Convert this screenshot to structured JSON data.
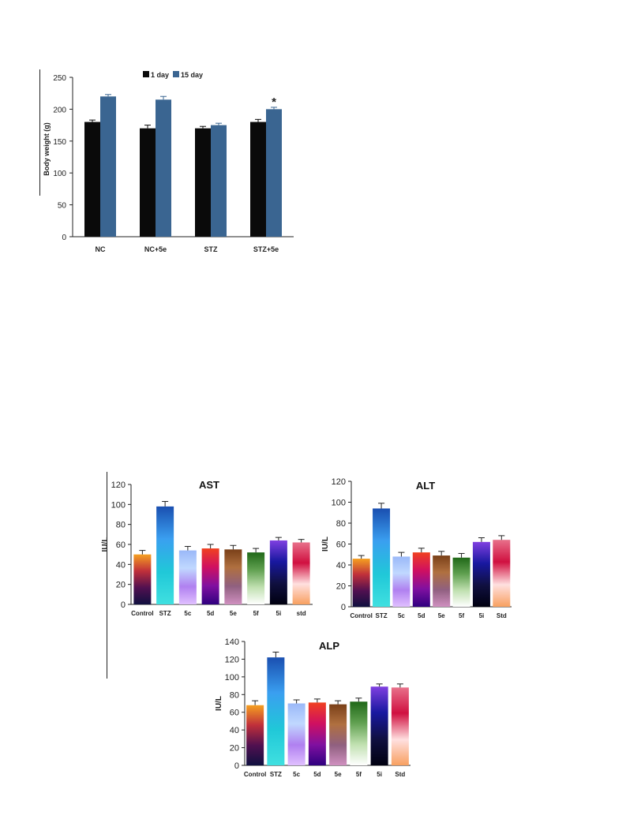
{
  "chart_data": [
    {
      "id": "bw",
      "type": "bar",
      "title": "",
      "ylabel": "Body weight (g)",
      "xlabel": "",
      "ylim": [
        0,
        250
      ],
      "yticks": [
        0,
        50,
        100,
        150,
        200,
        250
      ],
      "categories": [
        "NC",
        "NC+5e",
        "STZ",
        "STZ+5e"
      ],
      "series": [
        {
          "name": "1 day",
          "color": "#0a0a0a",
          "values": [
            180,
            170,
            170,
            180
          ],
          "errors": [
            3,
            5,
            3,
            4
          ]
        },
        {
          "name": "15 day",
          "color": "#3a6591",
          "values": [
            220,
            215,
            175,
            200
          ],
          "errors": [
            3,
            5,
            3,
            3
          ]
        }
      ],
      "annotations": [
        {
          "category": "STZ+5e",
          "series": 1,
          "text": "*"
        }
      ],
      "legend": "top"
    },
    {
      "id": "ast",
      "type": "bar",
      "title": "AST",
      "ylabel": "IU/L",
      "xlabel": "",
      "ylim": [
        0,
        120
      ],
      "yticks": [
        0,
        20,
        40,
        60,
        80,
        100,
        120
      ],
      "categories": [
        "Control",
        "STZ",
        "5c",
        "5d",
        "5e",
        "5f",
        "5i",
        "std"
      ],
      "values": [
        50,
        98,
        54,
        56,
        55,
        52,
        64,
        62
      ],
      "errors": [
        4,
        5,
        4,
        4,
        4,
        4,
        3,
        3
      ]
    },
    {
      "id": "alt",
      "type": "bar",
      "title": "ALT",
      "ylabel": "IU/L",
      "xlabel": "",
      "ylim": [
        0,
        120
      ],
      "yticks": [
        0,
        20,
        40,
        60,
        80,
        100,
        120
      ],
      "categories": [
        "Control",
        "STZ",
        "5c",
        "5d",
        "5e",
        "5f",
        "5i",
        "Std"
      ],
      "values": [
        46,
        94,
        48,
        52,
        49,
        47,
        62,
        64
      ],
      "errors": [
        3,
        5,
        4,
        4,
        4,
        4,
        4,
        4
      ]
    },
    {
      "id": "alp",
      "type": "bar",
      "title": "ALP",
      "ylabel": "IU/L",
      "xlabel": "",
      "ylim": [
        0,
        140
      ],
      "yticks": [
        0,
        20,
        40,
        60,
        80,
        100,
        120,
        140
      ],
      "categories": [
        "Control",
        "STZ",
        "5c",
        "5d",
        "5e",
        "5f",
        "5i",
        "Std"
      ],
      "values": [
        68,
        122,
        70,
        71,
        69,
        72,
        89,
        88
      ],
      "errors": [
        5,
        6,
        4,
        4,
        4,
        4,
        3,
        4
      ]
    }
  ],
  "bar_gradients": [
    [
      "#f5a020",
      "#c0303a",
      "#501050",
      "#101040"
    ],
    [
      "#1a4fb0",
      "#3a9ff0",
      "#20c8d8",
      "#40e0e0"
    ],
    [
      "#9ab8f8",
      "#c0d8ff",
      "#b080f0",
      "#e0c0ff"
    ],
    [
      "#f04020",
      "#d01060",
      "#8010a0",
      "#300080"
    ],
    [
      "#7a4018",
      "#b07040",
      "#906080",
      "#d090c0"
    ],
    [
      "#206818",
      "#60a050",
      "#c0e0b0",
      "#ffffff"
    ],
    [
      "#8040e0",
      "#1818a0",
      "#101040",
      "#000010"
    ],
    [
      "#e8708a",
      "#d01040",
      "#ffe0e0",
      "#f8a060"
    ]
  ]
}
